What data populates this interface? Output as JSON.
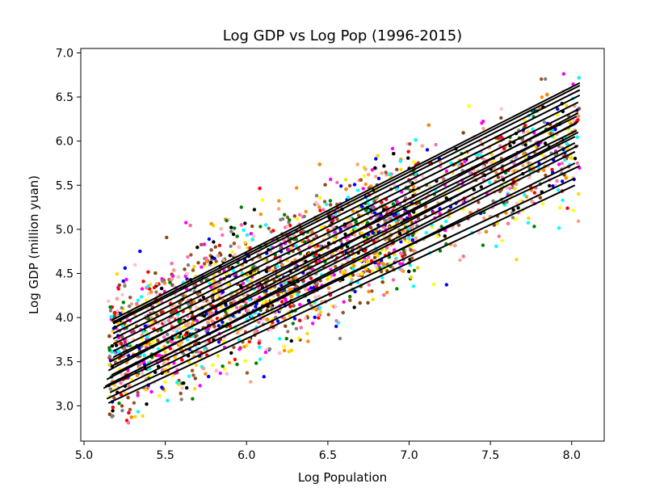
{
  "chart_data": {
    "type": "scatter",
    "title": "Log GDP vs Log Pop (1996-2015)",
    "xlabel": "Log Population",
    "ylabel": "Log GDP (million yuan)",
    "xlim": [
      4.98,
      8.2
    ],
    "ylim": [
      2.6,
      7.05
    ],
    "xticks": [
      "5.0",
      "5.5",
      "6.0",
      "6.5",
      "7.0",
      "7.5",
      "8.0"
    ],
    "yticks": [
      "3.0",
      "3.5",
      "4.0",
      "4.5",
      "5.0",
      "5.5",
      "6.0",
      "6.5",
      "7.0"
    ],
    "grid": false,
    "legend": "none",
    "point_colors": [
      "#0000ff",
      "#ff8c00",
      "#008000",
      "#ff0000",
      "#ff69b4",
      "#ffff00",
      "#000000",
      "#00ffff",
      "#ff00ff",
      "#808080",
      "#ffa07a",
      "#8b4513",
      "#a0522d",
      "#ffc0cb",
      "#ffd700"
    ],
    "point_count": 3000,
    "fit_line_color": "#000000",
    "fit_lines": [
      {
        "x": [
          5.12,
          8.05
        ],
        "y": [
          3.2,
          5.72
        ]
      },
      {
        "x": [
          5.14,
          8.02
        ],
        "y": [
          3.08,
          5.58
        ]
      },
      {
        "x": [
          5.15,
          8.02
        ],
        "y": [
          3.03,
          5.5
        ]
      },
      {
        "x": [
          5.16,
          8.02
        ],
        "y": [
          3.15,
          5.75
        ]
      },
      {
        "x": [
          5.16,
          8.02
        ],
        "y": [
          3.25,
          5.88
        ]
      },
      {
        "x": [
          5.17,
          8.02
        ],
        "y": [
          3.35,
          5.98
        ]
      },
      {
        "x": [
          5.17,
          8.02
        ],
        "y": [
          3.45,
          6.05
        ]
      },
      {
        "x": [
          5.18,
          8.03
        ],
        "y": [
          3.55,
          6.12
        ]
      },
      {
        "x": [
          5.18,
          8.03
        ],
        "y": [
          3.62,
          6.2
        ]
      },
      {
        "x": [
          5.18,
          8.03
        ],
        "y": [
          3.7,
          6.28
        ]
      },
      {
        "x": [
          5.18,
          8.04
        ],
        "y": [
          3.76,
          6.36
        ]
      },
      {
        "x": [
          5.18,
          8.04
        ],
        "y": [
          3.82,
          6.44
        ]
      },
      {
        "x": [
          5.18,
          8.05
        ],
        "y": [
          3.88,
          6.52
        ]
      },
      {
        "x": [
          5.18,
          8.05
        ],
        "y": [
          3.93,
          6.58
        ]
      },
      {
        "x": [
          5.18,
          8.05
        ],
        "y": [
          3.95,
          6.63
        ]
      },
      {
        "x": [
          5.17,
          8.05
        ],
        "y": [
          3.97,
          6.66
        ]
      },
      {
        "x": [
          5.13,
          8.04
        ],
        "y": [
          3.22,
          5.95
        ]
      },
      {
        "x": [
          5.14,
          8.04
        ],
        "y": [
          3.3,
          6.1
        ]
      },
      {
        "x": [
          5.15,
          8.04
        ],
        "y": [
          3.4,
          6.22
        ]
      },
      {
        "x": [
          5.16,
          8.04
        ],
        "y": [
          3.5,
          6.32
        ]
      }
    ]
  }
}
